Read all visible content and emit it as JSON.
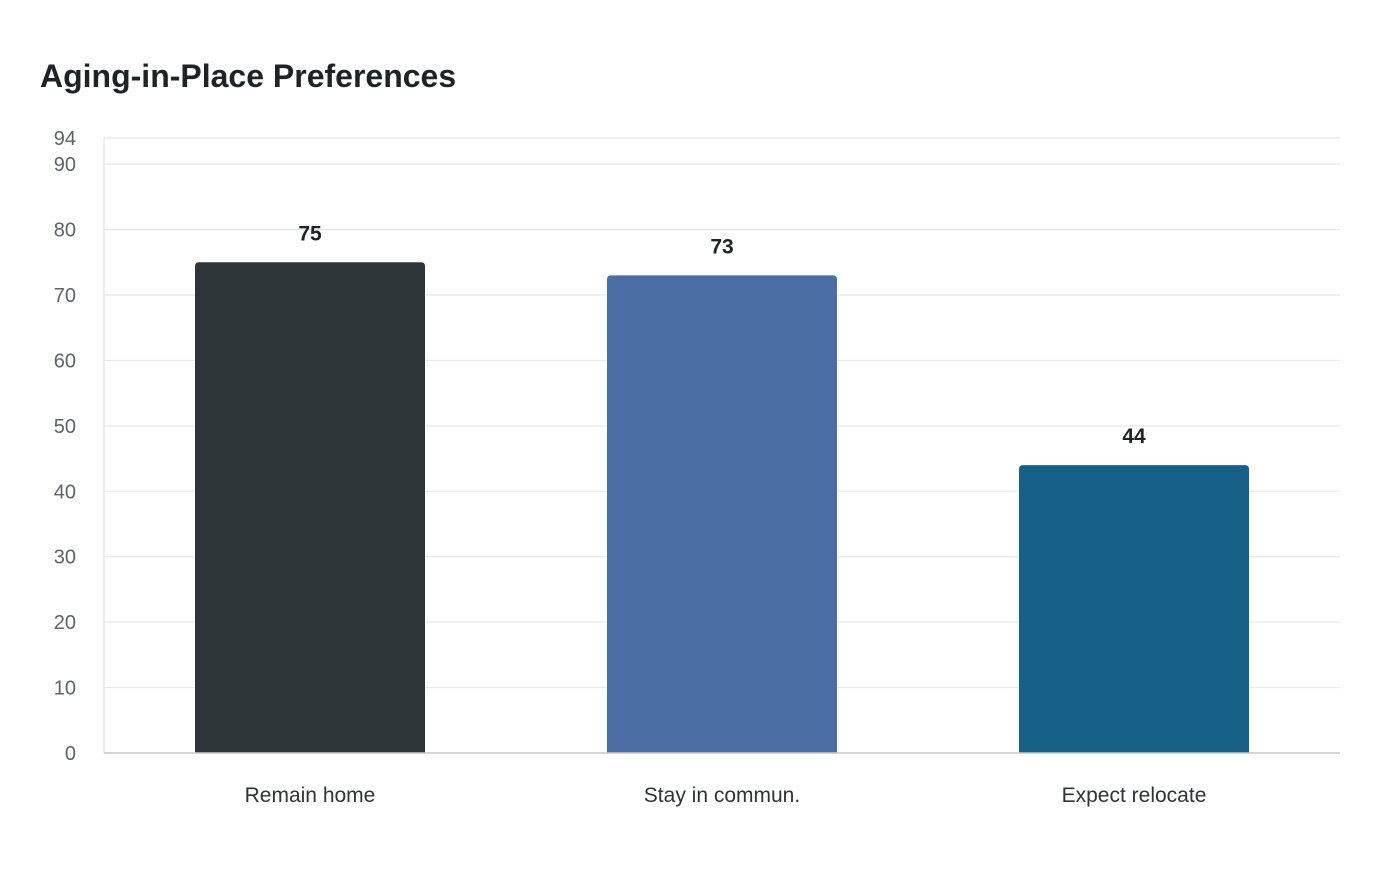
{
  "chart_data": {
    "type": "bar",
    "title": "Aging-in-Place Preferences",
    "xlabel": "",
    "ylabel": "",
    "categories": [
      "Remain home",
      "Stay in commun.",
      "Expect relocate"
    ],
    "values": [
      75,
      73,
      44
    ],
    "value_labels": [
      "75",
      "73",
      "44"
    ],
    "colors": [
      "#2e3538",
      "#4a6ea3",
      "#176088"
    ],
    "ylim": [
      0,
      94
    ],
    "yticks": [
      0,
      10,
      20,
      30,
      40,
      50,
      60,
      70,
      80,
      90,
      94
    ],
    "ytick_labels": [
      "0",
      "10",
      "20",
      "30",
      "40",
      "50",
      "60",
      "70",
      "80",
      "90",
      "94"
    ],
    "grid": true,
    "legend": "none"
  }
}
